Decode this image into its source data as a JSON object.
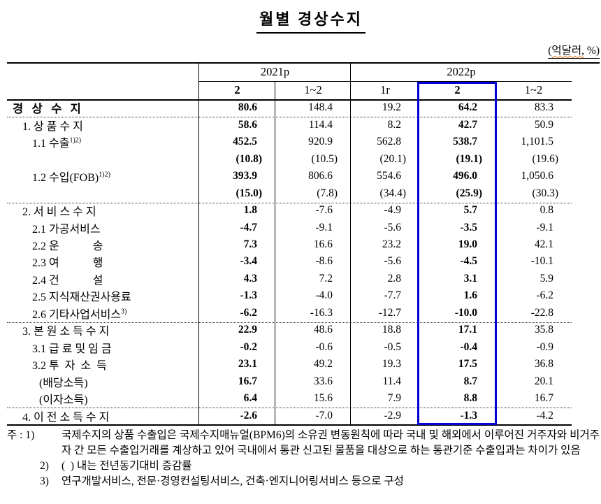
{
  "title": "월별 경상수지",
  "unit_note": {
    "prefix": "(",
    "wavy": "억달러,",
    "suffix": " %)"
  },
  "colors": {
    "highlight_box": "#0000d4",
    "spellcheck_squiggle": "#e07b1e",
    "text": "#000000",
    "background": "#ffffff"
  },
  "table": {
    "col_groups": [
      {
        "label": "2021p",
        "span": 2
      },
      {
        "label": "2022p",
        "span": 3
      }
    ],
    "col_headers": [
      "2",
      "1~2",
      "1r",
      "2",
      "1~2"
    ],
    "highlighted_column": "2022p / 2",
    "rows": [
      {
        "label": "경   상   수   지",
        "sup": "",
        "indent": 0,
        "bold": true,
        "paren": false,
        "values": [
          "80.6",
          "148.4",
          "19.2",
          "64.2",
          "83.3"
        ]
      },
      {
        "label": "1. 상 품 수 지",
        "sup": "",
        "indent": 1,
        "bold": false,
        "paren": false,
        "values": [
          "58.6",
          "114.4",
          "8.2",
          "42.7",
          "50.9"
        ]
      },
      {
        "label": "1.1 수출",
        "sup": "1)2)",
        "indent": 2,
        "bold": false,
        "paren": false,
        "values": [
          "452.5",
          "920.9",
          "562.8",
          "538.7",
          "1,101.5"
        ]
      },
      {
        "label": "",
        "sup": "",
        "indent": 2,
        "bold": false,
        "paren": true,
        "values": [
          "(10.8)",
          "(10.5)",
          "(20.1)",
          "(19.1)",
          "(19.6)"
        ]
      },
      {
        "label": "1.2 수입(FOB)",
        "sup": "1)2)",
        "indent": 2,
        "bold": false,
        "paren": false,
        "values": [
          "393.9",
          "806.6",
          "554.6",
          "496.0",
          "1,050.6"
        ]
      },
      {
        "label": "",
        "sup": "",
        "indent": 2,
        "bold": false,
        "paren": true,
        "values": [
          "(15.0)",
          "(7.8)",
          "(34.4)",
          "(25.9)",
          "(30.3)"
        ]
      },
      {
        "label": "2. 서 비 스 수 지",
        "sup": "",
        "indent": 1,
        "bold": false,
        "paren": false,
        "values": [
          "1.8",
          "-7.6",
          "-4.9",
          "5.7",
          "0.8"
        ]
      },
      {
        "label": "2.1 가공서비스",
        "sup": "",
        "indent": 2,
        "bold": false,
        "paren": false,
        "values": [
          "-4.7",
          "-9.1",
          "-5.6",
          "-3.5",
          "-9.1"
        ]
      },
      {
        "label": "2.2 운            송",
        "sup": "",
        "indent": 2,
        "bold": false,
        "paren": false,
        "values": [
          "7.3",
          "16.6",
          "23.2",
          "19.0",
          "42.1"
        ]
      },
      {
        "label": "2.3 여            행",
        "sup": "",
        "indent": 2,
        "bold": false,
        "paren": false,
        "values": [
          "-3.4",
          "-8.6",
          "-5.6",
          "-4.5",
          "-10.1"
        ]
      },
      {
        "label": "2.4 건            설",
        "sup": "",
        "indent": 2,
        "bold": false,
        "paren": false,
        "values": [
          "4.3",
          "7.2",
          "2.8",
          "3.1",
          "5.9"
        ]
      },
      {
        "label": "2.5 지식재산권사용료",
        "sup": "",
        "indent": 2,
        "bold": false,
        "paren": false,
        "values": [
          "-1.3",
          "-4.0",
          "-7.7",
          "1.6",
          "-6.2"
        ]
      },
      {
        "label": "2.6 기타사업서비스",
        "sup": "3)",
        "indent": 2,
        "bold": false,
        "paren": false,
        "values": [
          "-6.2",
          "-16.3",
          "-12.7",
          "-10.0",
          "-22.8"
        ]
      },
      {
        "label": "3. 본 원 소 득 수 지",
        "sup": "",
        "indent": 1,
        "bold": false,
        "paren": false,
        "values": [
          "22.9",
          "48.6",
          "18.8",
          "17.1",
          "35.8"
        ]
      },
      {
        "label": "3.1 급 료 및 임 금",
        "sup": "",
        "indent": 2,
        "bold": false,
        "paren": false,
        "values": [
          "-0.2",
          "-0.6",
          "-0.5",
          "-0.4",
          "-0.9"
        ]
      },
      {
        "label": "3.2 투  자  소  득",
        "sup": "",
        "indent": 2,
        "bold": false,
        "paren": false,
        "values": [
          "23.1",
          "49.2",
          "19.3",
          "17.5",
          "36.8"
        ]
      },
      {
        "label": "(배당소득)",
        "sup": "",
        "indent": 3,
        "bold": false,
        "paren": false,
        "values": [
          "16.7",
          "33.6",
          "11.4",
          "8.7",
          "20.1"
        ]
      },
      {
        "label": "(이자소득)",
        "sup": "",
        "indent": 3,
        "bold": false,
        "paren": false,
        "values": [
          "6.4",
          "15.6",
          "7.9",
          "8.8",
          "16.7"
        ]
      },
      {
        "label": "4. 이 전 소 득 수 지",
        "sup": "",
        "indent": 1,
        "bold": false,
        "paren": false,
        "values": [
          "-2.6",
          "-7.0",
          "-2.9",
          "-1.3",
          "-4.2"
        ]
      }
    ]
  },
  "notes": {
    "marker1": "주 : 1)",
    "note1": "국제수지의 상품 수출입은 국제수지매뉴얼(BPM6)의 소유권 변동원칙에 따라 국내 및 해외에서 이루어진 거주자와 비거주자 간 모든 수출입거래를 계상하고 있어 국내에서 통관 신고된 물품을 대상으로 하는 통관기준 수출입과는 차이가 있음",
    "marker2": "2)",
    "note2": "(  ) 내는 전년동기대비 증감률",
    "marker3": "3)",
    "note3": "연구개발서비스, 전문·경영컨설팅서비스, 건축·엔지니어링서비스 등으로 구성"
  }
}
